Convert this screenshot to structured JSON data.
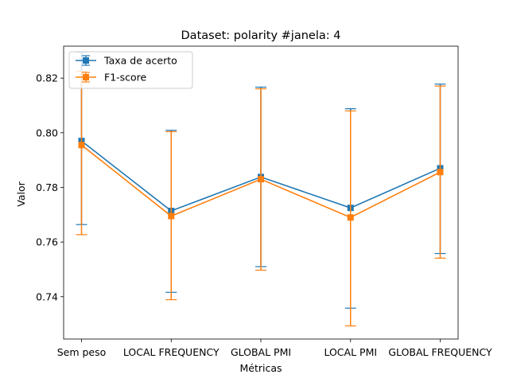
{
  "chart_data": {
    "type": "line",
    "title": "Dataset: polarity #janela: 4",
    "xlabel": "Métricas",
    "ylabel": "Valor",
    "categories": [
      "Sem peso",
      "LOCAL FREQUENCY",
      "GLOBAL PMI",
      "LOCAL PMI",
      "GLOBAL FREQUENCY"
    ],
    "ylim": [
      0.7245,
      0.8317
    ],
    "yticks": [
      0.74,
      0.76,
      0.78,
      0.8,
      0.82
    ],
    "ytick_labels": [
      "0.74",
      "0.76",
      "0.78",
      "0.80",
      "0.82"
    ],
    "grid": false,
    "legend_position": "upper-left",
    "series": [
      {
        "name": "Taxa de acerto",
        "color": "#1f77b4",
        "values": [
          0.797,
          0.7714,
          0.7838,
          0.7725,
          0.787
        ],
        "lower": [
          0.7664,
          0.7416,
          0.751,
          0.7358,
          0.7558
        ],
        "upper": [
          0.8295,
          0.8009,
          0.8167,
          0.8088,
          0.8178
        ]
      },
      {
        "name": "F1-score",
        "color": "#ff7f0e",
        "values": [
          0.7955,
          0.7695,
          0.783,
          0.769,
          0.7856
        ],
        "lower": [
          0.7627,
          0.7389,
          0.7497,
          0.7293,
          0.7541
        ],
        "upper": [
          0.8225,
          0.8004,
          0.8161,
          0.808,
          0.8171
        ]
      }
    ]
  }
}
